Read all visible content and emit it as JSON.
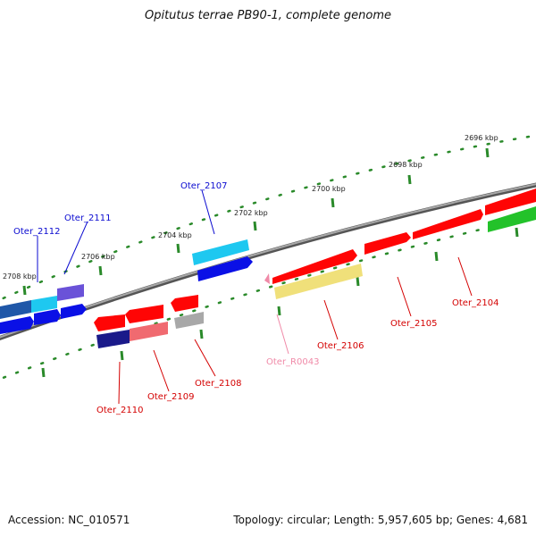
{
  "title": "Opitutus terrae PB90-1, complete genome",
  "footer": {
    "accession": "Accession: NC_010571",
    "summary": "Topology: circular; Length: 5,957,605 bp; Genes: 4,681"
  },
  "colors": {
    "backbone": "#808080",
    "tick": "#2a8a2a",
    "forward_label": "#0a0ad0",
    "reverse_label": "#d40000",
    "rna_label": "#f08aa8"
  },
  "ruler_labels": [
    "2696 kbp",
    "2698 kbp",
    "2700 kbp",
    "2702 kbp",
    "2704 kbp",
    "2706 kbp",
    "2708 kbp"
  ],
  "gene_labels": [
    {
      "id": "Oter_2112",
      "color": "#0a0ad0"
    },
    {
      "id": "Oter_2111",
      "color": "#0a0ad0"
    },
    {
      "id": "Oter_2107",
      "color": "#0a0ad0"
    },
    {
      "id": "Oter_2110",
      "color": "#d40000"
    },
    {
      "id": "Oter_2109",
      "color": "#d40000"
    },
    {
      "id": "Oter_2108",
      "color": "#d40000"
    },
    {
      "id": "Oter_R0043",
      "color": "#f08aa8"
    },
    {
      "id": "Oter_2106",
      "color": "#d40000"
    },
    {
      "id": "Oter_2105",
      "color": "#d40000"
    },
    {
      "id": "Oter_2104",
      "color": "#d40000"
    }
  ]
}
